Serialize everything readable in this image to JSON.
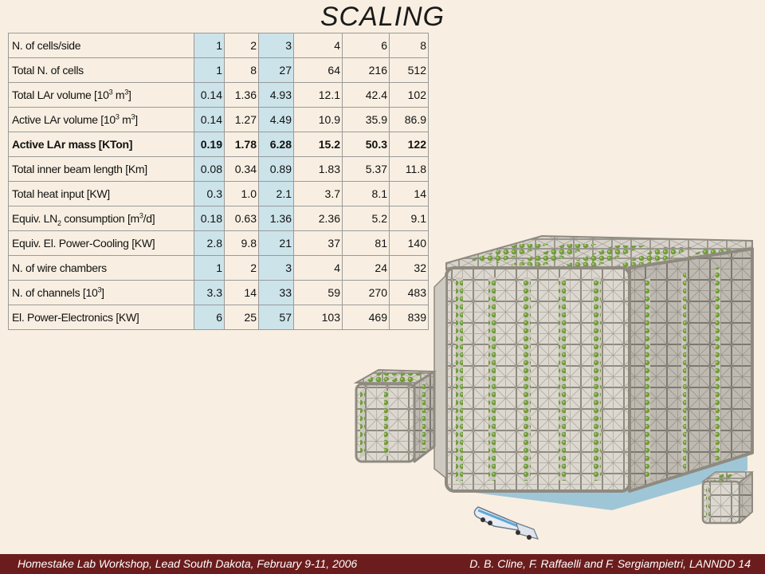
{
  "title": "SCALING",
  "table": {
    "rows": [
      {
        "label": "N. of cells/side",
        "values": [
          "1",
          "2",
          "3",
          "4",
          "6",
          "8"
        ]
      },
      {
        "label": "Total N. of cells",
        "values": [
          "1",
          "8",
          "27",
          "64",
          "216",
          "512"
        ]
      },
      {
        "label_pre": "Total LAr volume [10",
        "label_sup": "3",
        "label_mid": " m",
        "label_sup2": "3",
        "label_post": "]",
        "values": [
          "0.14",
          "1.36",
          "4.93",
          "12.1",
          "42.4",
          "102"
        ]
      },
      {
        "label_pre": "Active LAr volume [10",
        "label_sup": "3",
        "label_mid": " m",
        "label_sup2": "3",
        "label_post": "]",
        "values": [
          "0.14",
          "1.27",
          "4.49",
          "10.9",
          "35.9",
          "86.9"
        ]
      },
      {
        "label": "Active LAr mass [KTon]",
        "values": [
          "0.19",
          "1.78",
          "6.28",
          "15.2",
          "50.3",
          "122"
        ],
        "bold": true
      },
      {
        "label": "Total inner beam length [Km]",
        "values": [
          "0.08",
          "0.34",
          "0.89",
          "1.83",
          "5.37",
          "11.8"
        ]
      },
      {
        "label": "Total heat input [KW]",
        "values": [
          "0.3",
          "1.0",
          "2.1",
          "3.7",
          "8.1",
          "14"
        ]
      },
      {
        "label_pre": "Equiv. LN",
        "label_sub": "2",
        "label_mid": " consumption [m",
        "label_sup2": "3",
        "label_post": "/d]",
        "values": [
          "0.18",
          "0.63",
          "1.36",
          "2.36",
          "5.2",
          "9.1"
        ]
      },
      {
        "label": "Equiv. El. Power-Cooling [KW]",
        "values": [
          "2.8",
          "9.8",
          "21",
          "37",
          "81",
          "140"
        ]
      },
      {
        "label": "N. of wire chambers",
        "values": [
          "1",
          "2",
          "3",
          "4",
          "24",
          "32"
        ]
      },
      {
        "label_pre": "N. of channels [10",
        "label_sup": "3",
        "label_post": "]",
        "values": [
          "3.3",
          "14",
          "33",
          "59",
          "270",
          "483"
        ]
      },
      {
        "label": "El. Power-Electronics [KW]",
        "values": [
          "6",
          "25",
          "57",
          "103",
          "469",
          "839"
        ]
      }
    ]
  },
  "footer": {
    "left": "Homestake Lab Workshop, Lead South Dakota, February 9-11, 2006",
    "right": "D. B. Cline,  F. Raffaelli and F. Sergiampietri, LANNDD  14"
  },
  "colors": {
    "background": "#f8efe2",
    "highlight_column": "#cce3ea",
    "footer_bar": "#6b1d1d",
    "cube_frame": "#c9c4ba",
    "cube_panel": "#dcd8d0",
    "cube_green": "#6f9a3a"
  }
}
